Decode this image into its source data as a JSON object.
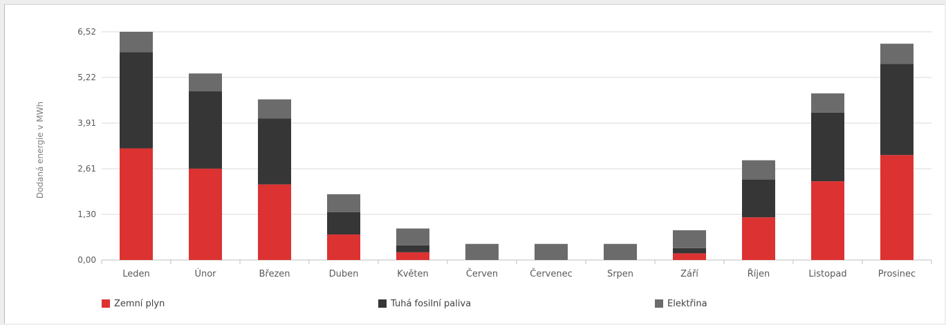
{
  "chart_data": {
    "type": "bar",
    "stacked": true,
    "ylabel": "Dodaná energie v MWh",
    "yticks": [
      "0,00",
      "1,30",
      "2,61",
      "3,91",
      "5,22",
      "6,52"
    ],
    "ylim": [
      0,
      6.52
    ],
    "grid": true,
    "legend_position": "bottom",
    "categories": [
      "Leden",
      "Únor",
      "Březen",
      "Duben",
      "Květen",
      "Červen",
      "Červenec",
      "Srpen",
      "Září",
      "Říjen",
      "Listopad",
      "Prosinec"
    ],
    "series": [
      {
        "name": "Zemní plyn",
        "color": "#dc3232",
        "values": [
          3.19,
          2.61,
          2.16,
          0.73,
          0.22,
          0,
          0,
          0,
          0.19,
          1.22,
          2.25,
          3.0
        ]
      },
      {
        "name": "Tuhá fosilní paliva",
        "color": "#363636",
        "values": [
          2.75,
          2.21,
          1.88,
          0.64,
          0.2,
          0,
          0,
          0,
          0.15,
          1.08,
          1.96,
          2.6
        ]
      },
      {
        "name": "Elektřina",
        "color": "#6b6b6b",
        "values": [
          0.58,
          0.51,
          0.55,
          0.51,
          0.48,
          0.46,
          0.46,
          0.46,
          0.51,
          0.55,
          0.55,
          0.58
        ]
      }
    ]
  }
}
